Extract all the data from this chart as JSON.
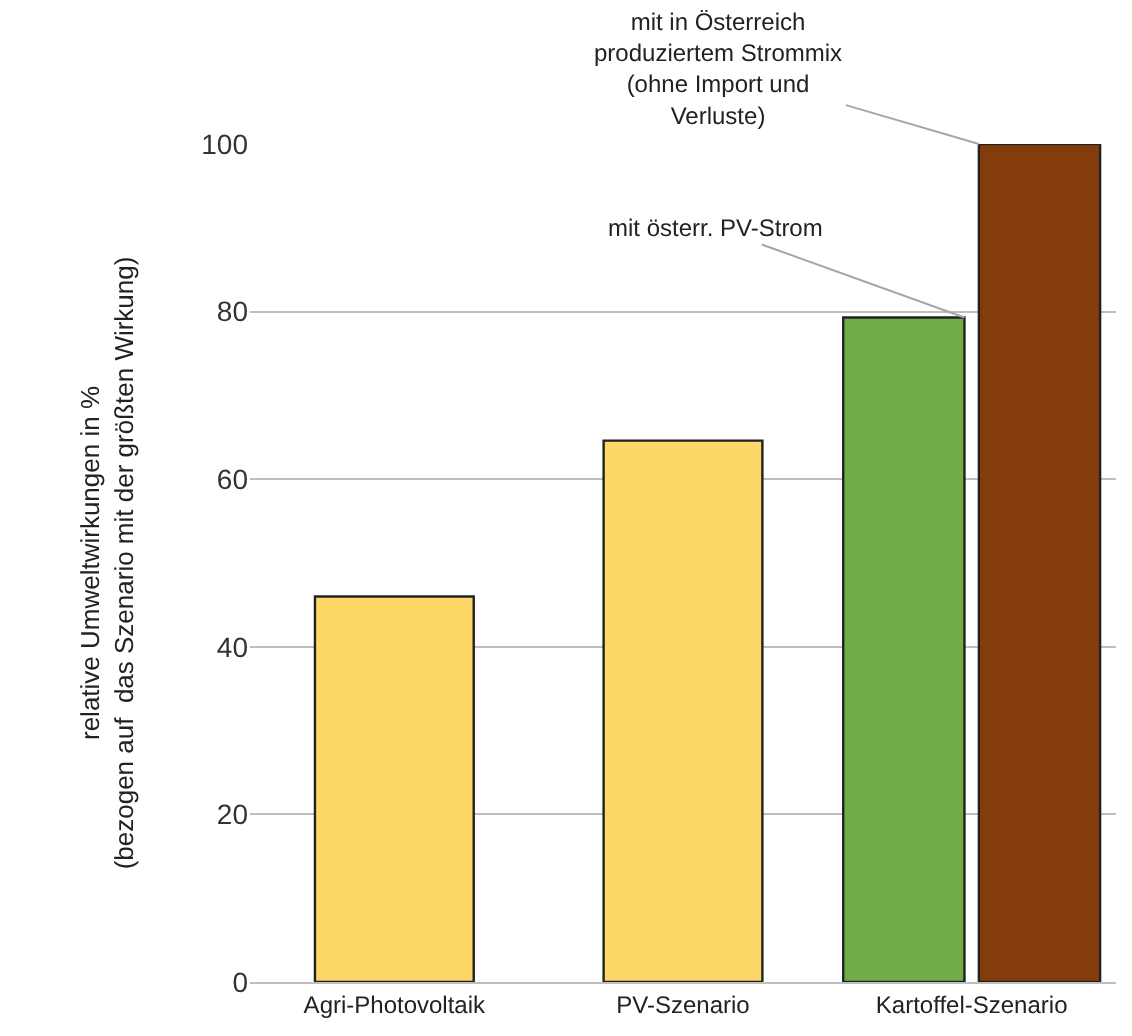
{
  "chart_data": {
    "type": "bar",
    "ylabel": "relative Umweltwirkungen in %\n(bezogen auf  das Szenario mit der größten Wirkung)",
    "categories": [
      "Agri-Photovoltaik",
      "PV-Szenario",
      "Kartoffel-Szenario"
    ],
    "series": [
      {
        "colors": [
          "#fdd868",
          "#fdd868",
          "#70ad47"
        ],
        "values": [
          46,
          64.6,
          79.3
        ]
      },
      {
        "color": "#843c0c",
        "values": [
          null,
          null,
          100
        ]
      }
    ],
    "ylim": [
      0,
      100
    ],
    "yticks": [
      0,
      20,
      40,
      60,
      80,
      100
    ],
    "grid": "y",
    "annotations": [
      {
        "text": "mit österr. PV-Strom",
        "x": "Kartoffel-Szenario",
        "y": 79.3
      },
      {
        "text": "mit in Österreich\nproduziertem Strommix\n(ohne Import und\nVerluste)",
        "x": "Kartoffel-Szenario",
        "y": 100
      }
    ]
  }
}
